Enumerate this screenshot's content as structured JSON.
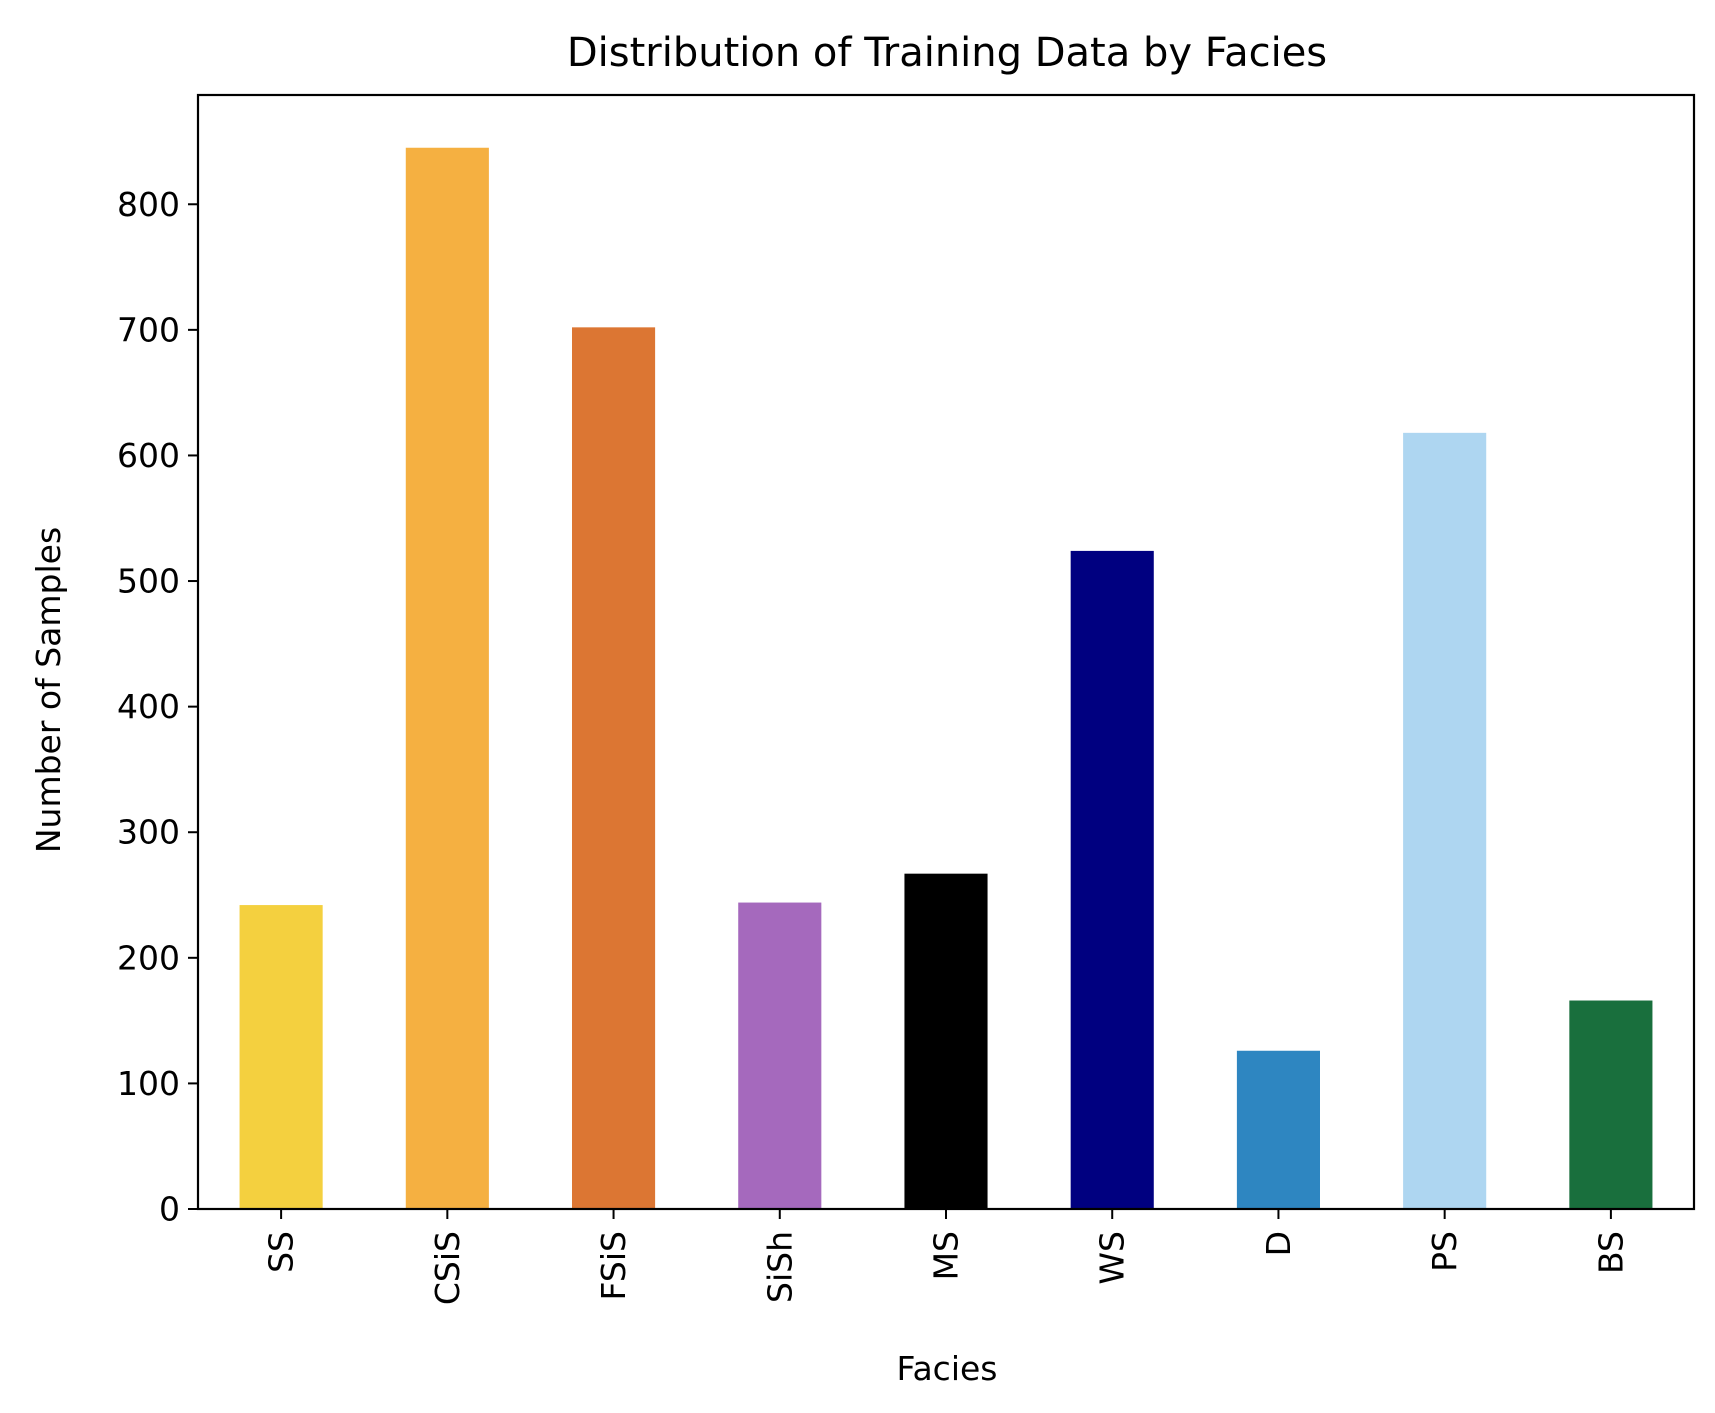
{
  "chart_data": {
    "type": "bar",
    "title": "Distribution of Training Data by Facies",
    "xlabel": "Facies",
    "ylabel": "Number of Samples",
    "categories": [
      "SS",
      "CSiS",
      "FSiS",
      "SiSh",
      "MS",
      "WS",
      "D",
      "PS",
      "BS"
    ],
    "values": [
      242,
      845,
      702,
      244,
      267,
      524,
      126,
      618,
      166
    ],
    "colors": [
      "#F4D03F",
      "#F5B041",
      "#DC7633",
      "#A569BD",
      "#000000",
      "#000080",
      "#2E86C1",
      "#AED6F1",
      "#196F3D"
    ],
    "yticks": [
      0,
      100,
      200,
      300,
      400,
      500,
      600,
      700,
      800
    ],
    "ylim": [
      0,
      887
    ],
    "grid": false,
    "legend": null
  }
}
